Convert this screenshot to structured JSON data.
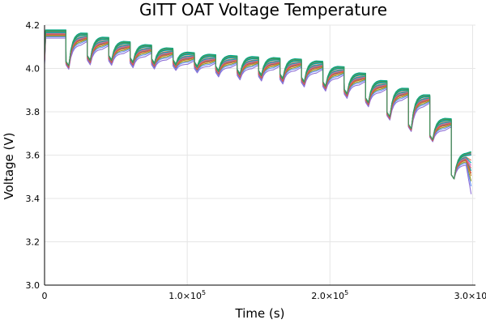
{
  "chart_data": {
    "type": "line",
    "title": "GITT OAT Voltage Temperature",
    "xlabel": "Time (s)",
    "ylabel": "Voltage (V)",
    "xlim": [
      0,
      302000
    ],
    "ylim": [
      3.0,
      4.2
    ],
    "x_ticks": [
      {
        "value": 0,
        "label": "0"
      },
      {
        "value": 100000,
        "label": "1.0×10^5"
      },
      {
        "value": 200000,
        "label": "2.0×10^5"
      },
      {
        "value": 300000,
        "label": "3.0×10^5"
      }
    ],
    "y_ticks": [
      {
        "value": 3.0,
        "label": "3.0"
      },
      {
        "value": 3.2,
        "label": "3.2"
      },
      {
        "value": 3.4,
        "label": "3.4"
      },
      {
        "value": 3.6,
        "label": "3.6"
      },
      {
        "value": 3.8,
        "label": "3.8"
      },
      {
        "value": 4.0,
        "label": "4.0"
      },
      {
        "value": 4.2,
        "label": "4.2"
      }
    ],
    "grid": true,
    "legend": "none",
    "pulse_starts": [
      15000,
      30000,
      45000,
      60000,
      75000,
      90000,
      105000,
      120000,
      135000,
      150000,
      165000,
      180000,
      195000,
      210000,
      225000,
      240000,
      255000,
      270000,
      285000
    ],
    "relaxed_voltages": [
      4.17,
      4.155,
      4.135,
      4.115,
      4.1,
      4.085,
      4.065,
      4.055,
      4.05,
      4.045,
      4.04,
      4.035,
      4.025,
      4.0,
      3.97,
      3.935,
      3.9,
      3.87,
      3.76,
      3.6
    ],
    "pulse_drops": [
      0.14,
      0.1,
      0.08,
      0.07,
      0.06,
      0.05,
      0.04,
      0.05,
      0.06,
      0.06,
      0.07,
      0.08,
      0.09,
      0.1,
      0.11,
      0.14,
      0.16,
      0.18,
      0.25
    ],
    "series": [
      {
        "color": "#009AFA",
        "offset": 0.0
      },
      {
        "color": "#E36F47",
        "offset": -0.004
      },
      {
        "color": "#3EA44E",
        "offset": 0.003
      },
      {
        "color": "#C371D2",
        "offset": -0.008
      },
      {
        "color": "#AC8D18",
        "offset": 0.006
      },
      {
        "color": "#00A9AD",
        "offset": -0.012
      },
      {
        "color": "#ED5E93",
        "offset": 0.002
      },
      {
        "color": "#C68225",
        "offset": -0.016
      },
      {
        "color": "#00A98D",
        "offset": 0.008
      },
      {
        "color": "#8E971E",
        "offset": -0.02
      },
      {
        "color": "#00A9B5",
        "offset": -0.006
      },
      {
        "color": "#9B7FE9",
        "offset": 0.004
      },
      {
        "color": "#618DF6",
        "offset": -0.024
      },
      {
        "color": "#F16171",
        "offset": -0.01
      },
      {
        "color": "#00A963",
        "offset": 0.001
      },
      {
        "color": "#8E70D6",
        "offset": -0.03
      },
      {
        "color": "#D4564F",
        "offset": -0.014
      },
      {
        "color": "#3B9B5E",
        "offset": 0.005
      }
    ]
  }
}
